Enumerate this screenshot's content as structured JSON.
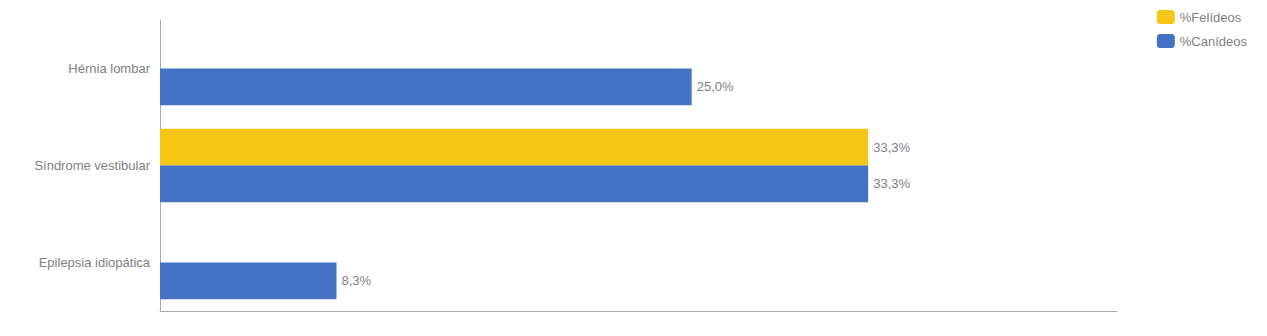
{
  "chart_data": {
    "type": "bar",
    "orientation": "horizontal",
    "categories": [
      "Epilepsia idiopática",
      "Síndrome vestibular",
      "Hérnia lombar"
    ],
    "series": [
      {
        "name": "%Felídeos",
        "color": "#F5C518",
        "values": [
          0.0,
          33.3,
          0.0
        ],
        "value_labels": [
          null,
          "33,3%",
          null
        ]
      },
      {
        "name": "%Canídeos",
        "color": "#4472C4",
        "values": [
          8.3,
          33.3,
          25.0
        ],
        "value_labels": [
          "8,3%",
          "33,3%",
          "25,0%"
        ]
      }
    ],
    "xlim": [
      0,
      45
    ],
    "data_labels": true,
    "tick_labels": "y",
    "grid": false,
    "legend": "upper right"
  }
}
